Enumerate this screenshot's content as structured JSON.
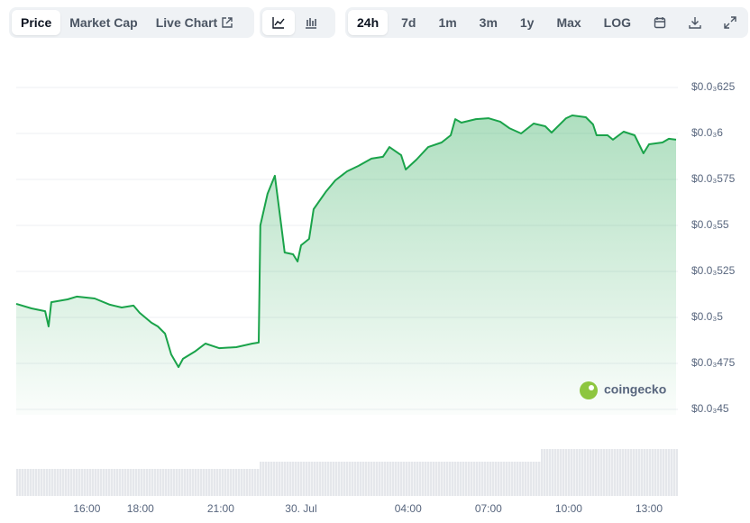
{
  "toolbar": {
    "tabs": [
      "Price",
      "Market Cap",
      "Live Chart"
    ],
    "ranges": [
      "24h",
      "7d",
      "1m",
      "3m",
      "1y",
      "Max",
      "LOG"
    ]
  },
  "watermark": "coingecko",
  "chart_data": {
    "type": "area",
    "color": "#1aa34a",
    "x": [
      -10.64,
      -10.07,
      -9.56,
      -9.43,
      -9.33,
      -8.72,
      -8.38,
      -7.71,
      -7.14,
      -6.7,
      -6.26,
      -6.03,
      -5.59,
      -5.35,
      -5.08,
      -4.85,
      -4.58,
      -4.41,
      -3.97,
      -3.57,
      -3.06,
      -2.42,
      -1.82,
      -1.58,
      -1.52,
      -1.25,
      -0.98,
      -0.74,
      -0.61,
      -0.3,
      -0.13,
      0,
      0.3,
      0.47,
      0.94,
      1.28,
      1.72,
      2.15,
      2.63,
      3.06,
      3.3,
      3.74,
      3.91,
      4.31,
      4.75,
      5.25,
      5.59,
      5.76,
      5.99,
      6.53,
      7.0,
      7.44,
      7.78,
      8.22,
      8.69,
      9.12,
      9.36,
      9.9,
      10.13,
      10.64,
      10.91,
      11.04,
      11.45,
      11.65,
      12.05,
      12.46,
      12.79,
      13.0,
      13.5,
      13.74,
      14.01
    ],
    "values": [
      0.0005074,
      0.0005049,
      0.0005034,
      0.0004951,
      0.0005083,
      0.0005098,
      0.0005113,
      0.0005103,
      0.0005069,
      0.0005054,
      0.0005064,
      0.0005025,
      0.0004971,
      0.0004951,
      0.0004912,
      0.0004799,
      0.000473,
      0.0004775,
      0.0004814,
      0.0004858,
      0.0004833,
      0.0004838,
      0.0004858,
      0.0004863,
      0.00055,
      0.0005672,
      0.000577,
      0.00055,
      0.0005353,
      0.0005343,
      0.0005304,
      0.0005392,
      0.0005427,
      0.0005588,
      0.0005686,
      0.0005745,
      0.0005794,
      0.0005824,
      0.0005863,
      0.0005873,
      0.0005926,
      0.0005882,
      0.0005804,
      0.0005858,
      0.0005926,
      0.0005951,
      0.000599,
      0.0006078,
      0.0006059,
      0.0006078,
      0.0006083,
      0.0006064,
      0.0006029,
      0.0006,
      0.0006054,
      0.0006039,
      0.0006005,
      0.0006083,
      0.0006098,
      0.0006088,
      0.0006049,
      0.000599,
      0.000599,
      0.0005966,
      0.000601,
      0.000599,
      0.0005892,
      0.0005941,
      0.0005951,
      0.0005971,
      0.0005966
    ],
    "xlim": [
      -10.64,
      14.01
    ],
    "xticks": [
      {
        "value": -8,
        "label": "16:00"
      },
      {
        "value": -6,
        "label": "18:00"
      },
      {
        "value": -3,
        "label": "21:00"
      },
      {
        "value": 0,
        "label": "30. Jul"
      },
      {
        "value": 4,
        "label": "04:00"
      },
      {
        "value": 7,
        "label": "07:00"
      },
      {
        "value": 10,
        "label": "10:00"
      },
      {
        "value": 13,
        "label": "13:00"
      }
    ],
    "ylim": [
      0.00045,
      0.000625
    ],
    "yticks": [
      {
        "value": 0.000625,
        "label": "$0.0₃625"
      },
      {
        "value": 0.0006,
        "label": "$0.0₃6"
      },
      {
        "value": 0.000575,
        "label": "$0.0₃575"
      },
      {
        "value": 0.00055,
        "label": "$0.0₃55"
      },
      {
        "value": 0.000525,
        "label": "$0.0₃525"
      },
      {
        "value": 0.0005,
        "label": "$0.0₃5"
      },
      {
        "value": 0.000475,
        "label": "$0.0₃475"
      },
      {
        "value": 0.00045,
        "label": "$0.0₃45"
      }
    ],
    "grid": true
  }
}
